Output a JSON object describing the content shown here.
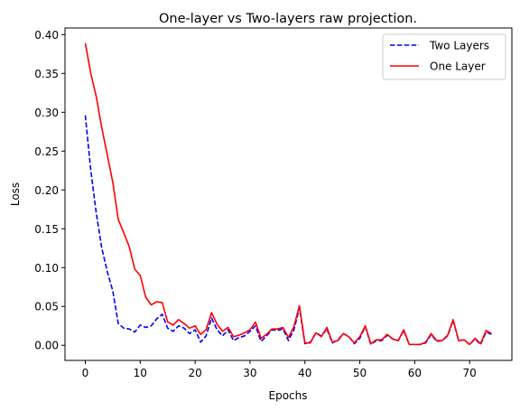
{
  "chart_data": {
    "type": "line",
    "title": "One-layer vs Two-layers raw projection.",
    "xlabel": "Epochs",
    "ylabel": "Loss",
    "xlim": [
      -3.7,
      77.7
    ],
    "ylim": [
      -0.0195,
      0.4085
    ],
    "xticks": [
      0,
      10,
      20,
      30,
      40,
      50,
      60,
      70
    ],
    "yticks": [
      0.0,
      0.05,
      0.1,
      0.15,
      0.2,
      0.25,
      0.3,
      0.35,
      0.4
    ],
    "ytick_labels": [
      "0.00",
      "0.05",
      "0.10",
      "0.15",
      "0.20",
      "0.25",
      "0.30",
      "0.35",
      "0.40"
    ],
    "legend_position": "top-right",
    "grid": false,
    "x": [
      0,
      1,
      2,
      3,
      4,
      5,
      6,
      7,
      8,
      9,
      10,
      11,
      12,
      13,
      14,
      15,
      16,
      17,
      18,
      19,
      20,
      21,
      22,
      23,
      24,
      25,
      26,
      27,
      28,
      29,
      30,
      31,
      32,
      33,
      34,
      35,
      36,
      37,
      38,
      39,
      40,
      41,
      42,
      43,
      44,
      45,
      46,
      47,
      48,
      49,
      50,
      51,
      52,
      53,
      54,
      55,
      56,
      57,
      58,
      59,
      60,
      61,
      62,
      63,
      64,
      65,
      66,
      67,
      68,
      69,
      70,
      71,
      72,
      73,
      74
    ],
    "series": [
      {
        "name": "Two Layers",
        "color": "#0000ff",
        "linestyle": "dashed",
        "values": [
          0.296,
          0.225,
          0.17,
          0.125,
          0.095,
          0.07,
          0.028,
          0.022,
          0.021,
          0.017,
          0.026,
          0.023,
          0.025,
          0.034,
          0.04,
          0.022,
          0.018,
          0.025,
          0.022,
          0.015,
          0.02,
          0.004,
          0.012,
          0.035,
          0.02,
          0.012,
          0.02,
          0.006,
          0.01,
          0.012,
          0.018,
          0.025,
          0.005,
          0.012,
          0.02,
          0.019,
          0.021,
          0.006,
          0.02,
          0.048,
          0.002,
          0.004,
          0.016,
          0.012,
          0.021,
          0.003,
          0.007,
          0.015,
          0.011,
          0.002,
          0.009,
          0.024,
          0.001,
          0.006,
          0.006,
          0.013,
          0.008,
          0.006,
          0.019,
          0.001,
          0.001,
          0.001,
          0.003,
          0.014,
          0.005,
          0.006,
          0.012,
          0.032,
          0.006,
          0.007,
          0.001,
          0.008,
          0.001,
          0.017,
          0.014
        ]
      },
      {
        "name": "One Layer",
        "color": "#ff0000",
        "linestyle": "solid",
        "values": [
          0.389,
          0.35,
          0.32,
          0.28,
          0.245,
          0.21,
          0.162,
          0.145,
          0.127,
          0.098,
          0.09,
          0.062,
          0.052,
          0.056,
          0.055,
          0.03,
          0.026,
          0.033,
          0.028,
          0.022,
          0.025,
          0.014,
          0.02,
          0.042,
          0.027,
          0.018,
          0.023,
          0.011,
          0.013,
          0.016,
          0.02,
          0.03,
          0.009,
          0.014,
          0.021,
          0.021,
          0.023,
          0.01,
          0.024,
          0.051,
          0.003,
          0.003,
          0.016,
          0.011,
          0.023,
          0.004,
          0.006,
          0.015,
          0.011,
          0.003,
          0.011,
          0.025,
          0.002,
          0.007,
          0.007,
          0.014,
          0.008,
          0.006,
          0.02,
          0.001,
          0.001,
          0.001,
          0.004,
          0.015,
          0.006,
          0.006,
          0.013,
          0.033,
          0.006,
          0.007,
          0.001,
          0.009,
          0.002,
          0.019,
          0.015
        ]
      }
    ]
  }
}
